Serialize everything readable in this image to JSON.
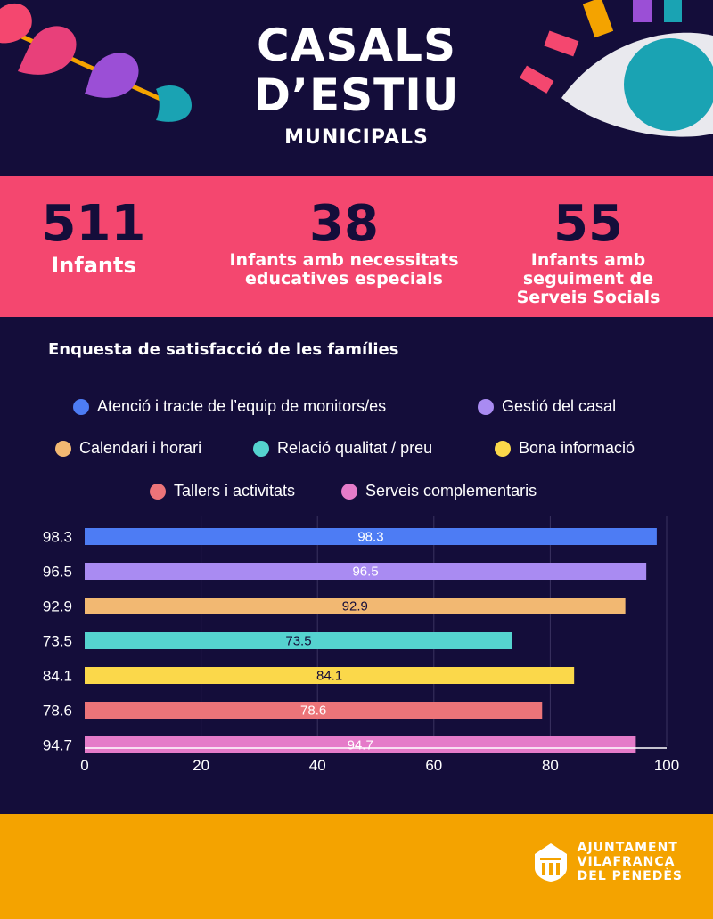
{
  "header": {
    "title_line1": "CASALS",
    "title_line2": "D’ESTIU",
    "subtitle": "MUNICIPALS"
  },
  "stats": [
    {
      "number": "511",
      "label": "Infants"
    },
    {
      "number": "38",
      "label": "Infants amb necessitats educatives especials"
    },
    {
      "number": "55",
      "label": "Infants amb seguiment de Serveis Socials"
    }
  ],
  "survey_title": "Enquesta de satisfacció de les famílies",
  "colors": {
    "background": "#140d3a",
    "stats_band": "#f4476f",
    "footer": "#f4a300"
  },
  "chart_data": {
    "type": "bar",
    "orientation": "horizontal",
    "categories": [
      "98.3",
      "96.5",
      "92.9",
      "73.5",
      "84.1",
      "78.6",
      "94.7"
    ],
    "series": [
      {
        "name": "Atenció i tracte de l’equip de monitors/es",
        "value": 98.3,
        "color": "#4d7cf4"
      },
      {
        "name": "Gestió del casal",
        "value": 96.5,
        "color": "#a98bf2"
      },
      {
        "name": "Calendari i horari",
        "value": 92.9,
        "color": "#f2b872"
      },
      {
        "name": "Relació qualitat / preu",
        "value": 73.5,
        "color": "#55d3cf"
      },
      {
        "name": "Bona informació",
        "value": 84.1,
        "color": "#fbd84a"
      },
      {
        "name": "Tallers i activitats",
        "value": 78.6,
        "color": "#ec7479"
      },
      {
        "name": "Serveis complementaris",
        "value": 94.7,
        "color": "#e57bc9"
      }
    ],
    "xlim": [
      0,
      100
    ],
    "xticks": [
      "0",
      "20",
      "40",
      "60",
      "80",
      "100"
    ],
    "legend_position": "top",
    "grid": true
  },
  "footer": {
    "logo_line1": "AJUNTAMENT",
    "logo_line2": "VILAFRANCA",
    "logo_line3": "DEL PENEDÈS"
  }
}
